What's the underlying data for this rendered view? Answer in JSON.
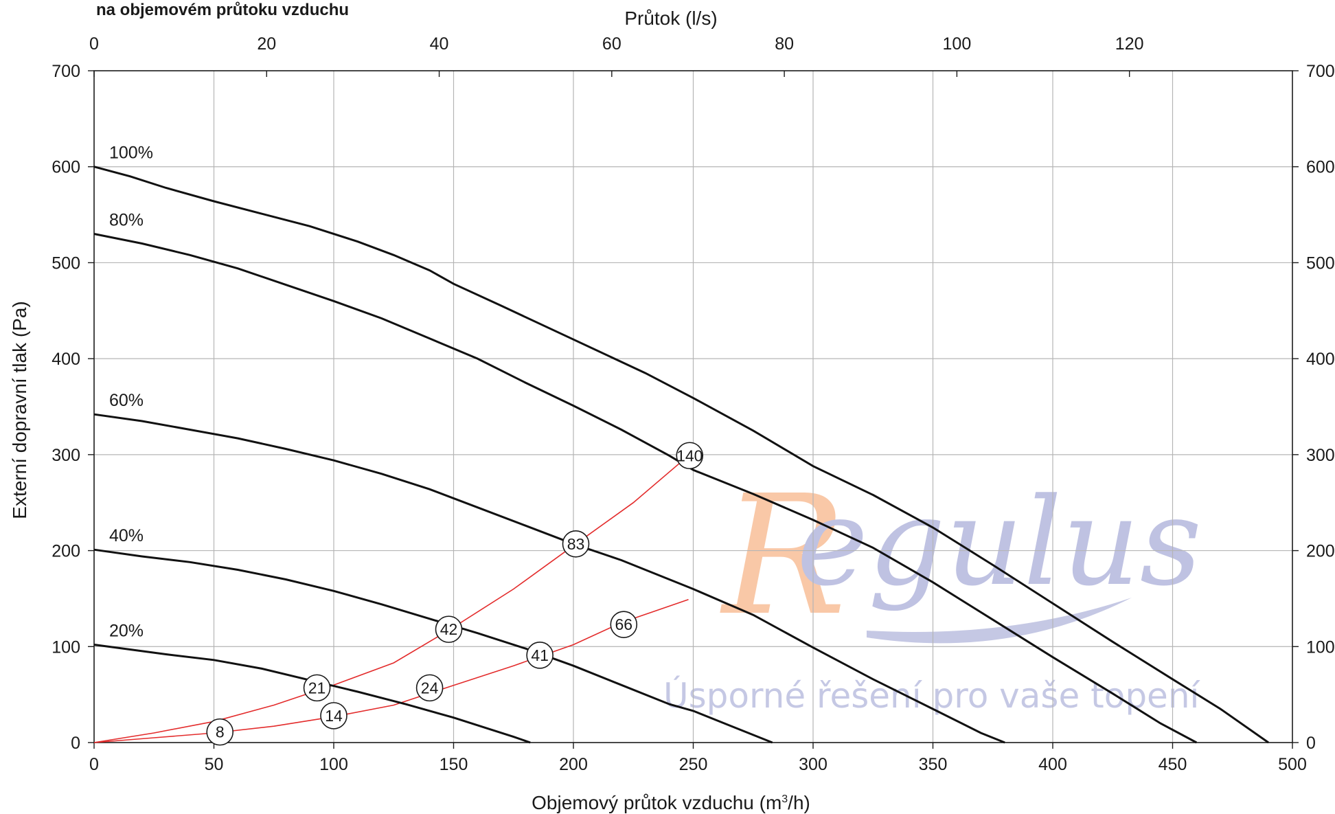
{
  "chart_data": {
    "type": "line",
    "title": "na objemovém průtoku vzduchu",
    "xlabel": "Objemový průtok vzduchu (m3/h)",
    "xlabel_parts": {
      "pre": "Objemový průtok vzduchu (m",
      "sup": "3",
      "post": "/h)"
    },
    "ylabel": "Externí dopravní tlak (Pa)",
    "x2label": "Průtok (l/s)",
    "xlim": [
      0,
      500
    ],
    "ylim": [
      0,
      700
    ],
    "x2lim": [
      0,
      138.89
    ],
    "x_ticks": [
      0,
      50,
      100,
      150,
      200,
      250,
      300,
      350,
      400,
      450,
      500
    ],
    "y_ticks": [
      0,
      100,
      200,
      300,
      400,
      500,
      600,
      700
    ],
    "x2_ticks": [
      0,
      20,
      40,
      60,
      80,
      100,
      120
    ],
    "grid": true,
    "series": [
      {
        "name": "100%",
        "color": "#111111",
        "points": [
          [
            0,
            600
          ],
          [
            15,
            590
          ],
          [
            30,
            578
          ],
          [
            50,
            564
          ],
          [
            70,
            551
          ],
          [
            90,
            538
          ],
          [
            110,
            522
          ],
          [
            125,
            508
          ],
          [
            140,
            492
          ],
          [
            150,
            478
          ],
          [
            170,
            455
          ],
          [
            200,
            420
          ],
          [
            230,
            385
          ],
          [
            250,
            359
          ],
          [
            275,
            325
          ],
          [
            300,
            288
          ],
          [
            325,
            258
          ],
          [
            350,
            224
          ],
          [
            375,
            185
          ],
          [
            400,
            145
          ],
          [
            425,
            105
          ],
          [
            450,
            66
          ],
          [
            470,
            35
          ],
          [
            490,
            0
          ]
        ]
      },
      {
        "name": "80%",
        "color": "#111111",
        "points": [
          [
            0,
            530
          ],
          [
            20,
            520
          ],
          [
            40,
            508
          ],
          [
            60,
            494
          ],
          [
            80,
            477
          ],
          [
            100,
            460
          ],
          [
            120,
            442
          ],
          [
            140,
            421
          ],
          [
            160,
            400
          ],
          [
            180,
            375
          ],
          [
            200,
            351
          ],
          [
            220,
            326
          ],
          [
            240,
            299
          ],
          [
            250,
            284
          ],
          [
            275,
            259
          ],
          [
            300,
            232
          ],
          [
            325,
            203
          ],
          [
            350,
            167
          ],
          [
            375,
            128
          ],
          [
            400,
            89
          ],
          [
            425,
            51
          ],
          [
            445,
            20
          ],
          [
            460,
            0
          ]
        ]
      },
      {
        "name": "60%",
        "color": "#111111",
        "points": [
          [
            0,
            342
          ],
          [
            20,
            335
          ],
          [
            40,
            326
          ],
          [
            60,
            317
          ],
          [
            80,
            306
          ],
          [
            100,
            294
          ],
          [
            120,
            280
          ],
          [
            140,
            264
          ],
          [
            160,
            245
          ],
          [
            180,
            226
          ],
          [
            200,
            207
          ],
          [
            220,
            190
          ],
          [
            240,
            170
          ],
          [
            250,
            160
          ],
          [
            275,
            133
          ],
          [
            300,
            99
          ],
          [
            325,
            66
          ],
          [
            350,
            35
          ],
          [
            370,
            10
          ],
          [
            380,
            0
          ]
        ]
      },
      {
        "name": "40%",
        "color": "#111111",
        "points": [
          [
            0,
            201
          ],
          [
            20,
            194
          ],
          [
            40,
            188
          ],
          [
            60,
            180
          ],
          [
            80,
            170
          ],
          [
            100,
            158
          ],
          [
            120,
            144
          ],
          [
            140,
            129
          ],
          [
            160,
            114
          ],
          [
            180,
            98
          ],
          [
            200,
            80
          ],
          [
            220,
            60
          ],
          [
            240,
            40
          ],
          [
            250,
            33
          ],
          [
            265,
            18
          ],
          [
            283,
            0
          ]
        ]
      },
      {
        "name": "20%",
        "color": "#111111",
        "points": [
          [
            0,
            102
          ],
          [
            15,
            97
          ],
          [
            30,
            92
          ],
          [
            50,
            86
          ],
          [
            70,
            77
          ],
          [
            90,
            65
          ],
          [
            110,
            53
          ],
          [
            130,
            40
          ],
          [
            150,
            26
          ],
          [
            165,
            14
          ],
          [
            175,
            6
          ],
          [
            182,
            0
          ]
        ]
      }
    ],
    "system_curves": [
      {
        "color": "#e32b2b",
        "points": [
          [
            0,
            0
          ],
          [
            25,
            10
          ],
          [
            50,
            22
          ],
          [
            75,
            39
          ],
          [
            100,
            60
          ],
          [
            125,
            83
          ],
          [
            148,
            117
          ],
          [
            175,
            160
          ],
          [
            201,
            207
          ],
          [
            225,
            250
          ],
          [
            248,
            299
          ]
        ]
      },
      {
        "color": "#e32b2b",
        "points": [
          [
            0,
            0
          ],
          [
            25,
            5
          ],
          [
            50,
            10
          ],
          [
            75,
            17
          ],
          [
            100,
            27
          ],
          [
            125,
            39
          ],
          [
            148,
            58
          ],
          [
            175,
            80
          ],
          [
            200,
            102
          ],
          [
            220,
            125
          ],
          [
            248,
            149
          ]
        ]
      }
    ],
    "markers": [
      {
        "label": "140",
        "x": 248.5,
        "y": 299
      },
      {
        "label": "83",
        "x": 201,
        "y": 207
      },
      {
        "label": "42",
        "x": 148,
        "y": 118
      },
      {
        "label": "41",
        "x": 186,
        "y": 91
      },
      {
        "label": "66",
        "x": 221,
        "y": 123
      },
      {
        "label": "21",
        "x": 93,
        "y": 57
      },
      {
        "label": "24",
        "x": 140,
        "y": 57
      },
      {
        "label": "14",
        "x": 100,
        "y": 28
      },
      {
        "label": "8",
        "x": 52.5,
        "y": 11
      }
    ]
  },
  "watermark": {
    "logo_r": "R",
    "logo_rest": "egulus",
    "slogan": "Úsporné řešení pro vaše topení",
    "logo_color": "#bfc2e2",
    "r_color": "#f9c8a7"
  }
}
